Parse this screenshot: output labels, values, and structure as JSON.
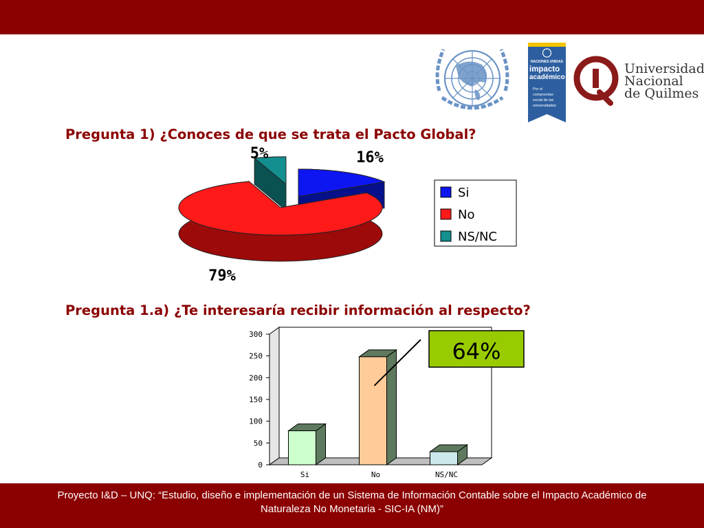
{
  "header": {
    "bar_color": "#8b0000"
  },
  "logos": {
    "un": {
      "icon": "un-emblem-icon",
      "color": "#6a93c6"
    },
    "impacto": {
      "top_text": "NACIONES UNIDAS",
      "line1": "impacto",
      "line2": "académico",
      "tagline": [
        "Por el",
        "compromiso",
        "social de las",
        "universidades"
      ],
      "color": "#2d5fa0"
    },
    "unq": {
      "lines": [
        "Universidad",
        "Nacional",
        "de Quilmes"
      ],
      "color": "#8b1a1a"
    }
  },
  "questions": {
    "q1": "Pregunta 1) ¿Conoces de que se trata el Pacto Global?",
    "q2": "Pregunta 1.a) ¿Te interesaría recibir información al respecto?"
  },
  "footer": {
    "line1": "Proyecto I&D – UNQ: “Estudio, diseño e implementación de un Sistema de Información Contable sobre el Impacto Académico de",
    "line2": "Naturaleza No Monetaria - SIC-IA (NM)”"
  },
  "chart_data": [
    {
      "type": "pie",
      "style": "3d-exploded",
      "slices": [
        {
          "label": "Si",
          "value": 16,
          "display": "16%",
          "color": "#0d16f0",
          "dark": "#05108a"
        },
        {
          "label": "No",
          "value": 79,
          "display": "79%",
          "color": "#ff1a1a",
          "dark": "#9c0a0a"
        },
        {
          "label": "NS/NC",
          "value": 5,
          "display": "5%",
          "color": "#138f8f",
          "dark": "#0a5252"
        }
      ],
      "legend": [
        "Si",
        "No",
        "NS/NC"
      ],
      "legend_position": "right"
    },
    {
      "type": "bar",
      "style": "3d",
      "categories": [
        "Si",
        "No",
        "NS/NC"
      ],
      "values": [
        78,
        248,
        30
      ],
      "colors": [
        "#ccffcc",
        "#ffcc99",
        "#cce8ea"
      ],
      "side_color": "#5e7a5e",
      "ylim": [
        0,
        300
      ],
      "yticks": [
        "0",
        "50",
        "100",
        "150",
        "200",
        "250",
        "300"
      ],
      "grid": false,
      "annotation": {
        "text": "64%",
        "target": "No",
        "background": "#99cc00"
      }
    }
  ]
}
